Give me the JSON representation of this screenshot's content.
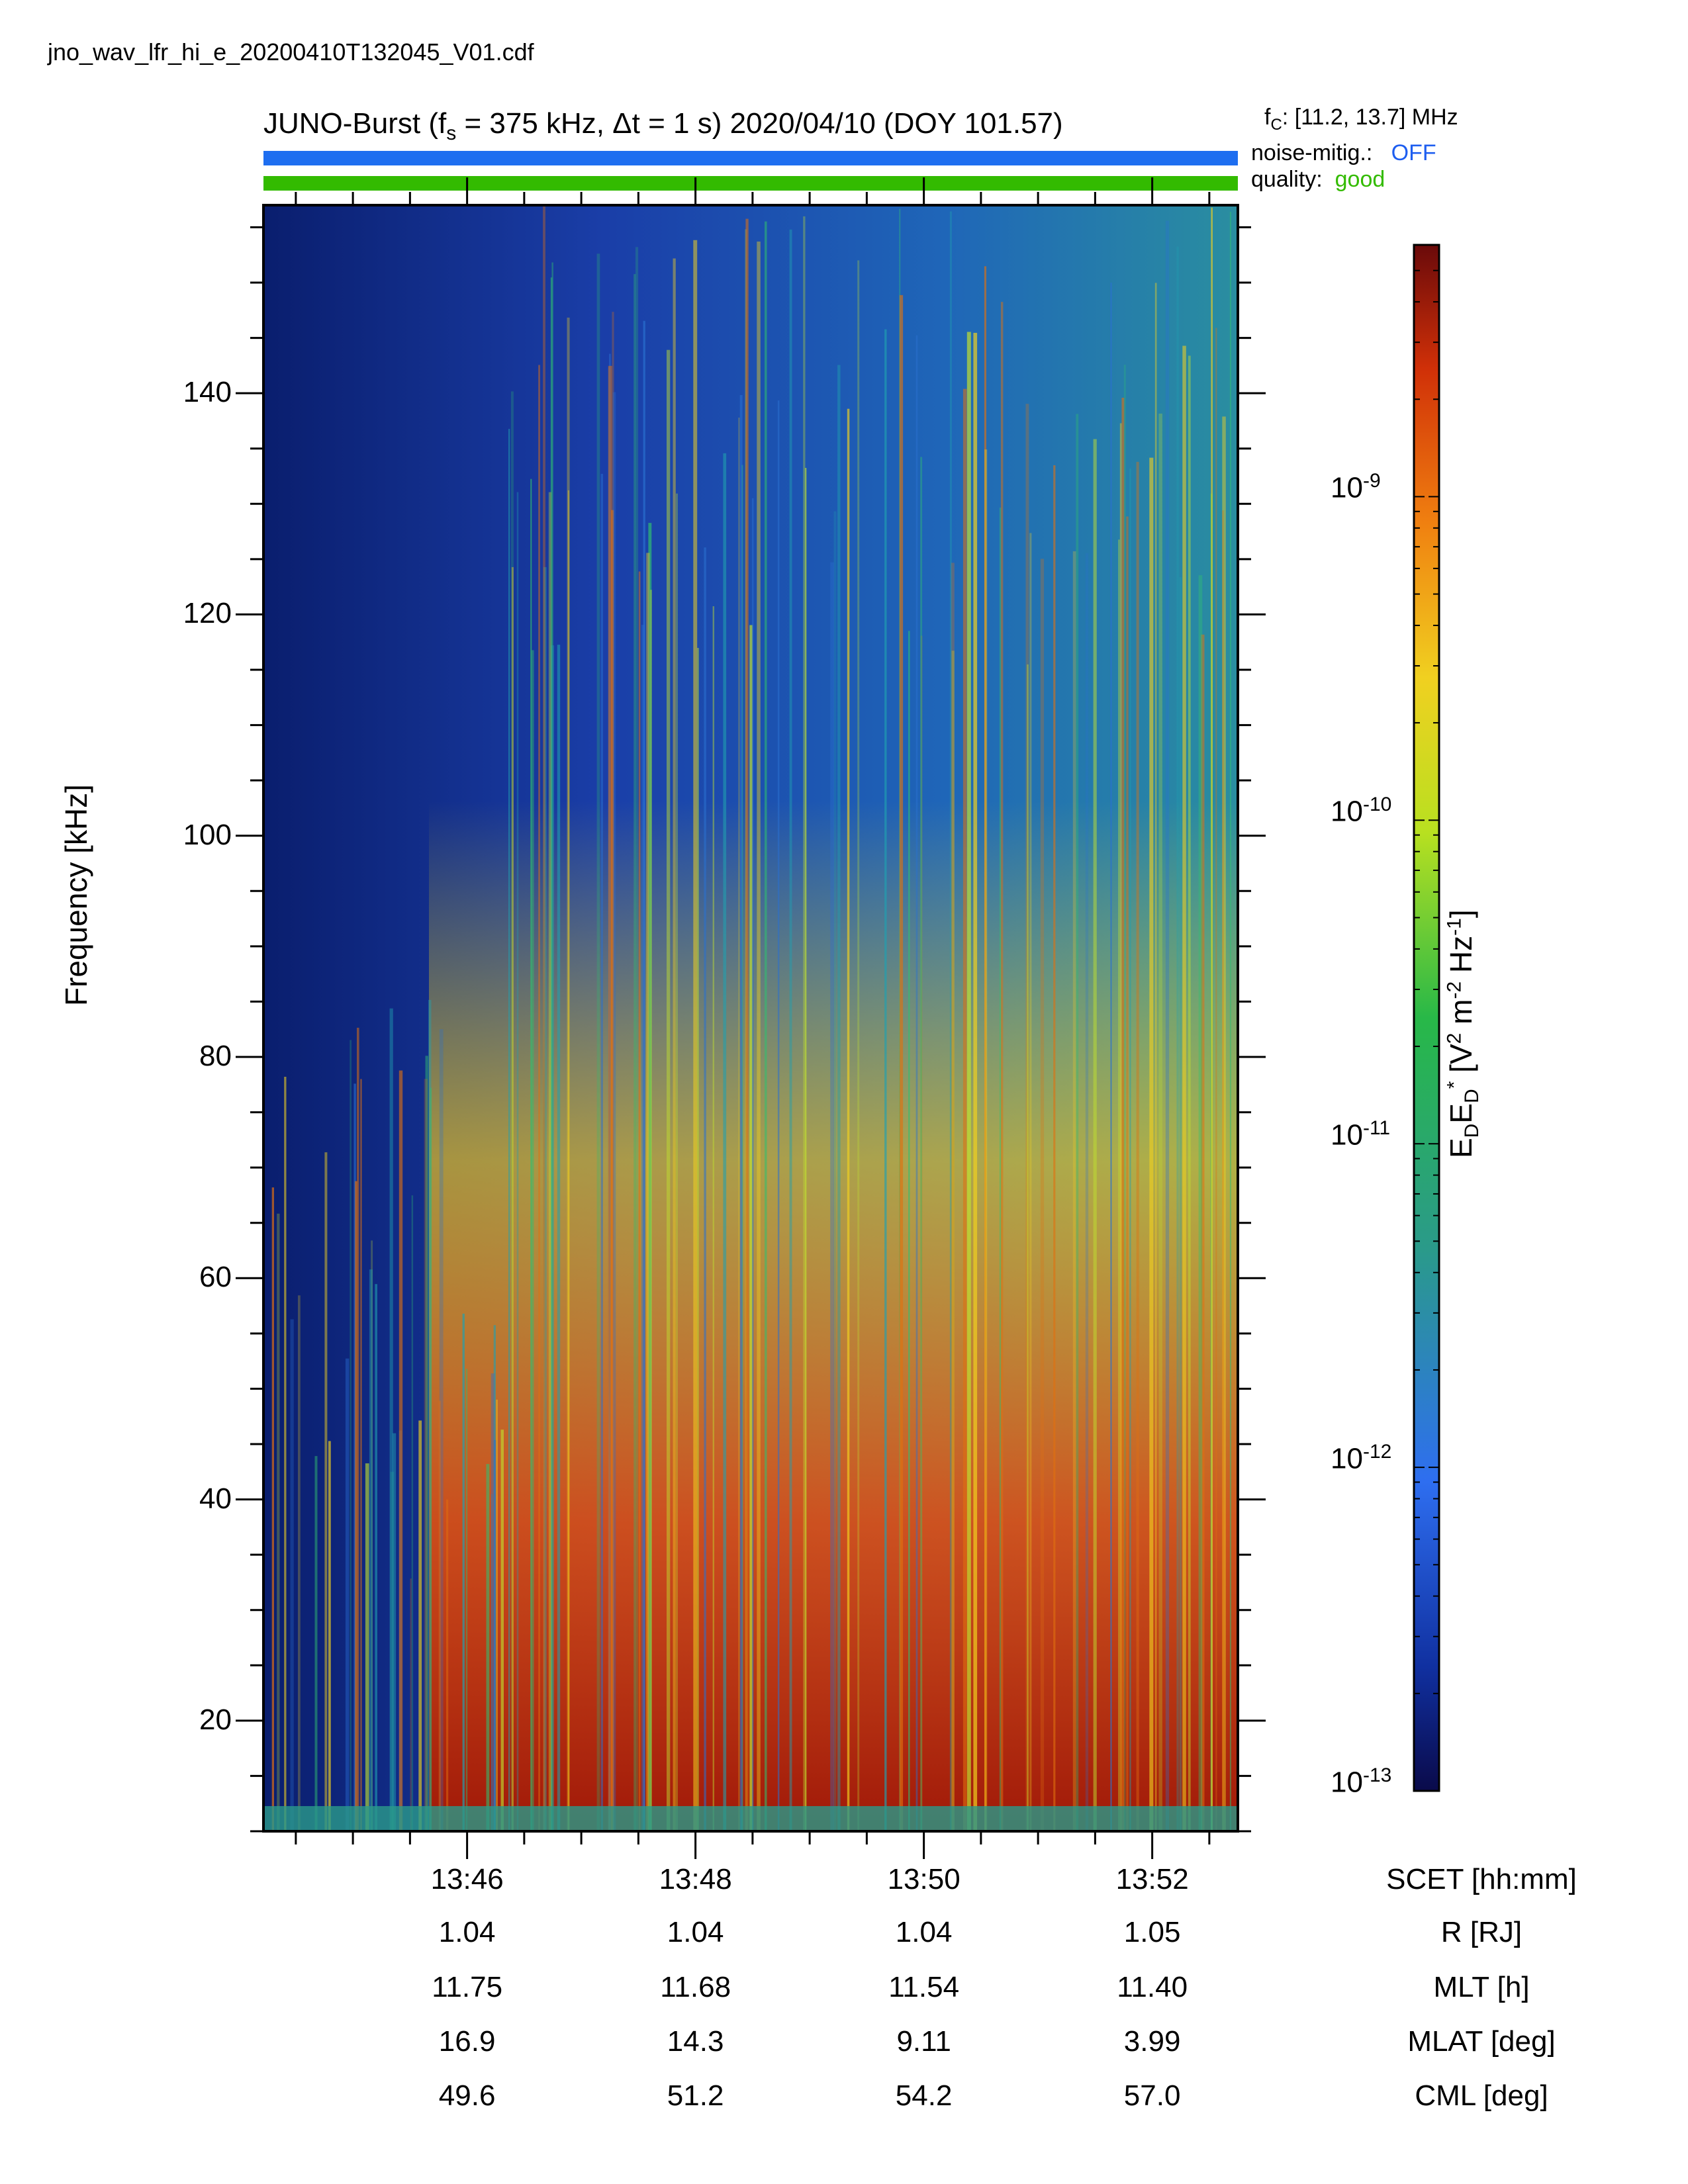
{
  "header": {
    "filename": "jno_wav_lfr_hi_e_20200410T132045_V01.cdf",
    "title_prefix": "JUNO-Burst (f",
    "title_sub": "s",
    "title_rest": " = 375 kHz, Δt = 1 s)  2020/04/10 (DOY 101.57)",
    "fc_prefix": "f",
    "fc_sub": "C",
    "fc_rest": ": [11.2, 13.7] MHz",
    "noise_label": "noise-mitig.:",
    "noise_value": "OFF",
    "quality_label": "quality:",
    "quality_value": "good",
    "noise_color": "#1e6ef0",
    "quality_color": "#33bb00"
  },
  "chart_data": {
    "type": "heatmap",
    "title": "JUNO-Burst (fs = 375 kHz, Δt = 1 s)  2020/04/10 (DOY 101.57)",
    "ylabel": "Frequency [kHz]",
    "ylim": [
      10,
      157
    ],
    "y_ticks": [
      "20",
      "40",
      "60",
      "80",
      "100",
      "120",
      "140"
    ],
    "xlim": [
      "13:44:13",
      "13:52:45"
    ],
    "x_ticks": [
      "13:46",
      "13:48",
      "13:50",
      "13:52"
    ],
    "colorbar": {
      "label": "EDED* [V2 m-2 Hz-1]",
      "label_parts": [
        "E",
        "D",
        "E",
        "D",
        "*",
        " [V",
        "2",
        " m",
        "-2",
        " Hz",
        "-1",
        "]"
      ],
      "scale": "log",
      "range": [
        1e-13,
        6e-09
      ],
      "ticks": [
        {
          "base": "10",
          "exp": "-9"
        },
        {
          "base": "10",
          "exp": "-10"
        },
        {
          "base": "10",
          "exp": "-11"
        },
        {
          "base": "10",
          "exp": "-12"
        },
        {
          "base": "10",
          "exp": "-13"
        }
      ]
    },
    "ephemeris": {
      "rows": [
        {
          "name": "SCET [hh:mm]",
          "values": [
            "13:46",
            "13:48",
            "13:50",
            "13:52"
          ]
        },
        {
          "name": "R [RJ]",
          "values": [
            "1.04",
            "1.04",
            "1.04",
            "1.05"
          ]
        },
        {
          "name": "MLT [h]",
          "values": [
            "11.75",
            "11.68",
            "11.54",
            "11.40"
          ]
        },
        {
          "name": "MLAT [deg]",
          "values": [
            "16.9",
            "14.3",
            "9.11",
            "3.99"
          ]
        },
        {
          "name": "CML [deg]",
          "values": [
            "49.6",
            "51.2",
            "54.2",
            "57.0"
          ]
        }
      ]
    }
  }
}
